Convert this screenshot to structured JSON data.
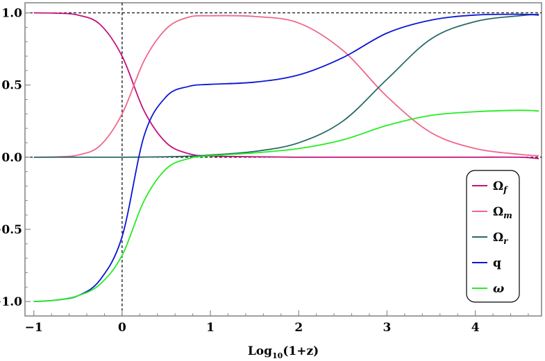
{
  "chart_data": {
    "type": "line",
    "xlabel": "Log10(1+z)",
    "xlabel_base": "Log",
    "xlabel_sub": "10",
    "xlabel_rest": "(1+z)",
    "xlim": [
      -1.1,
      4.75
    ],
    "ylim": [
      -1.1,
      1.07
    ],
    "xticks": [
      -1,
      0,
      1,
      2,
      3,
      4
    ],
    "xtick_labels": [
      "−1",
      "0",
      "1",
      "2",
      "3",
      "4"
    ],
    "yticks": [
      -1.0,
      -0.5,
      0.0,
      0.5,
      1.0
    ],
    "ytick_labels": [
      "−1.0",
      "−0.5",
      "0.0",
      "0.5",
      "1.0"
    ],
    "grid": false,
    "legend_position": "bottom-right",
    "reference_lines": {
      "horizontal": [
        0,
        1
      ],
      "vertical": [
        0
      ]
    },
    "x": [
      -1,
      -0.75,
      -0.5,
      -0.25,
      0,
      0.25,
      0.5,
      0.75,
      1,
      1.5,
      2,
      2.5,
      3,
      3.5,
      4,
      4.5,
      4.72
    ],
    "series": [
      {
        "name": "Ω",
        "subscript": "f",
        "color": "#c4107e",
        "values": [
          1.0,
          0.998,
          0.985,
          0.92,
          0.7,
          0.32,
          0.1,
          0.025,
          0.008,
          0.003,
          0.0,
          0.0,
          0.0,
          0.0,
          0.0,
          0.0,
          -0.01
        ]
      },
      {
        "name": "Ω",
        "subscript": "m",
        "color": "#f0668a",
        "values": [
          0.0,
          0.002,
          0.015,
          0.08,
          0.3,
          0.67,
          0.89,
          0.97,
          0.98,
          0.975,
          0.93,
          0.74,
          0.42,
          0.17,
          0.06,
          0.02,
          0.01
        ]
      },
      {
        "name": "Ω",
        "subscript": "r",
        "color": "#286868",
        "values": [
          0.0,
          0.0,
          0.0,
          0.0,
          0.0,
          0.001,
          0.003,
          0.007,
          0.015,
          0.04,
          0.1,
          0.25,
          0.54,
          0.82,
          0.94,
          0.98,
          0.99
        ]
      },
      {
        "name": "q",
        "subscript": "",
        "color": "#0a14d8",
        "values": [
          -1.0,
          -0.99,
          -0.96,
          -0.85,
          -0.55,
          0.15,
          0.42,
          0.49,
          0.505,
          0.52,
          0.57,
          0.69,
          0.86,
          0.95,
          0.985,
          0.99,
          0.985
        ]
      },
      {
        "name": "ω",
        "subscript": "",
        "color": "#22ee22",
        "values": [
          -1.0,
          -0.99,
          -0.96,
          -0.88,
          -0.68,
          -0.3,
          -0.08,
          -0.01,
          0.01,
          0.03,
          0.06,
          0.12,
          0.22,
          0.29,
          0.315,
          0.325,
          0.32
        ]
      }
    ]
  }
}
